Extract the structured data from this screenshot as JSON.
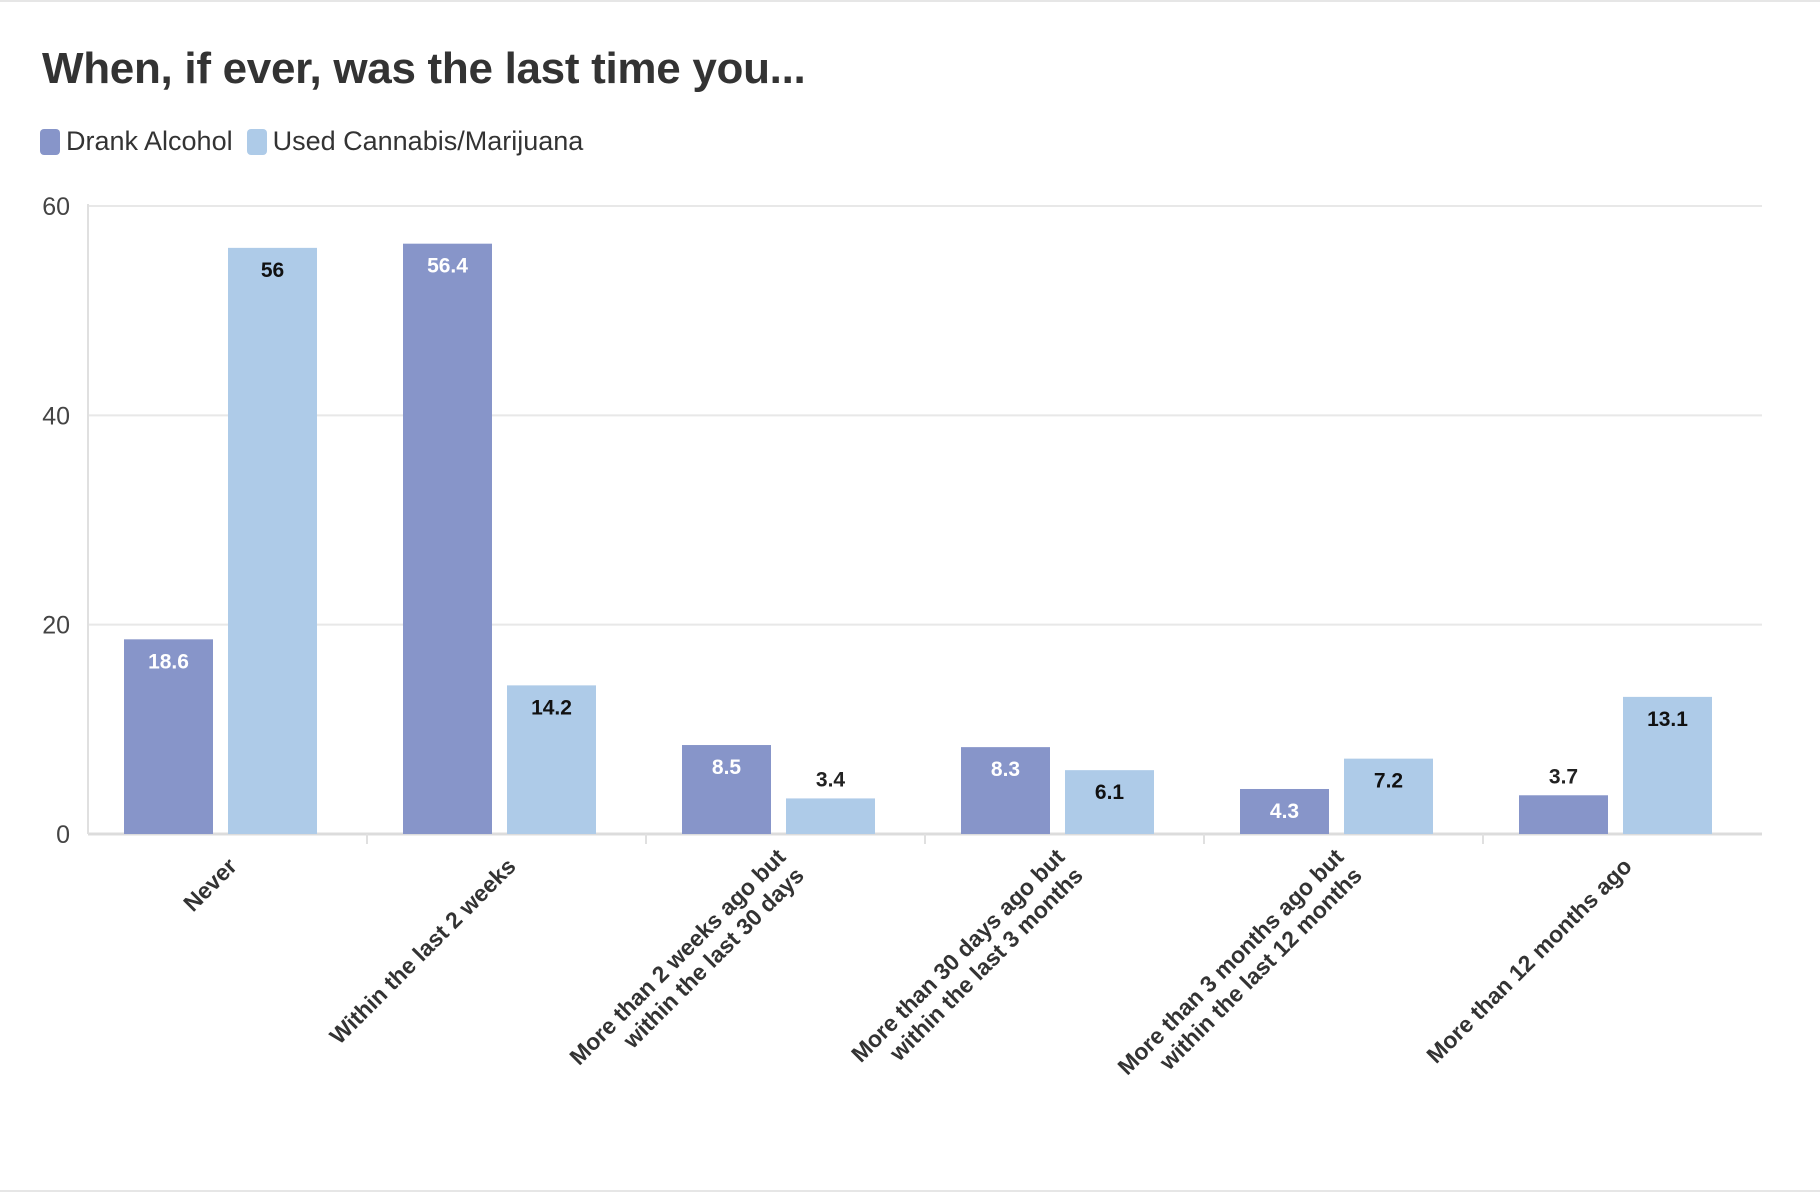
{
  "chart_data": {
    "type": "bar",
    "title": "When, if ever, was the last time you...",
    "xlabel": "",
    "ylabel": "",
    "ylim": [
      0,
      60
    ],
    "yticks": [
      0,
      20,
      40,
      60
    ],
    "grid": true,
    "legend_position": "top-left",
    "categories": [
      [
        "Never"
      ],
      [
        "Within the last 2 weeks"
      ],
      [
        "More than 2 weeks ago but",
        "within the last 30 days"
      ],
      [
        "More than 30 days ago but",
        "within the last 3 months"
      ],
      [
        "More than 3 months ago but",
        "within the last 12 months"
      ],
      [
        "More than 12 months ago"
      ]
    ],
    "series": [
      {
        "name": "Drank Alcohol",
        "color": "#8795c9",
        "values": [
          18.6,
          56.4,
          8.5,
          8.3,
          4.3,
          3.7
        ]
      },
      {
        "name": "Used Cannabis/Marijuana",
        "color": "#aecbe8",
        "values": [
          56,
          14.2,
          3.4,
          6.1,
          7.2,
          13.1
        ]
      }
    ]
  }
}
